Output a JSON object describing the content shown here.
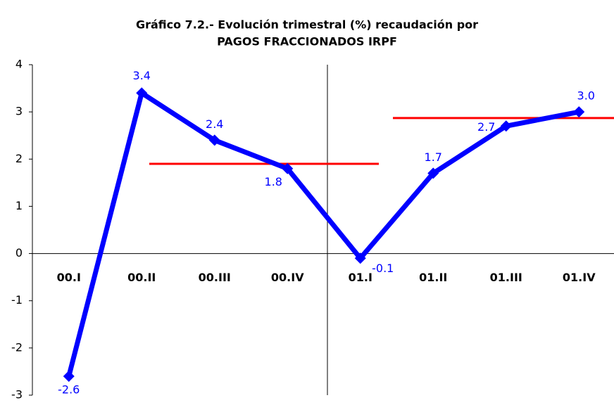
{
  "chart_data": {
    "type": "line",
    "title": [
      "Gráfico 7.2.- Evolución trimestral (%) recaudación por",
      "PAGOS FRACCIONADOS IRPF"
    ],
    "categories": [
      "00.I",
      "00.II",
      "00.III",
      "00.IV",
      "01.I",
      "01.II",
      "01.III",
      "01.IV"
    ],
    "series": [
      {
        "color": "#0000ff",
        "values": [
          -2.6,
          3.4,
          2.4,
          1.8,
          -0.1,
          1.7,
          2.7,
          3.0
        ],
        "value_labels": [
          "-2.6",
          "3.4",
          "2.4",
          "1.8",
          "-0.1",
          "1.7",
          "2.7",
          "3.0"
        ]
      }
    ],
    "reference_lines": [
      {
        "value": 1.9,
        "color": "#ff0000"
      },
      {
        "value": 2.87,
        "color": "#ff0000"
      }
    ],
    "ylim": [
      -3,
      4
    ],
    "yticks": [
      -3,
      -2,
      -1,
      0,
      1,
      2,
      3,
      4
    ]
  }
}
